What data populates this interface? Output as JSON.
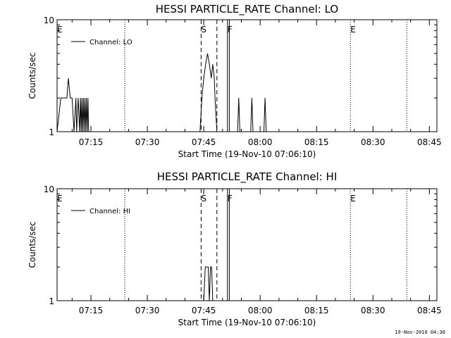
{
  "footer_timestamp": "19-Nov-2010 04:30",
  "chart_data": [
    {
      "type": "line",
      "title": "HESSI PARTICLE_RATE Channel: LO",
      "xlabel": "Start Time (19-Nov-10 07:06:10)",
      "ylabel": "Counts/sec",
      "y_scale": "log",
      "ylim": [
        1,
        10
      ],
      "y_ticks": [
        1,
        10
      ],
      "y_tick_labels": [
        "1",
        "10"
      ],
      "xlim": [
        "07:06",
        "08:47"
      ],
      "x_ticks": [
        "07:15",
        "07:30",
        "07:45",
        "08:00",
        "08:15",
        "08:30",
        "08:45"
      ],
      "legend": {
        "label": "Channel: LO",
        "placement": "top-left"
      },
      "markers": [
        {
          "label": "E",
          "time": "07:06",
          "style": "none"
        },
        {
          "label": "",
          "time": "07:24",
          "style": "dotted"
        },
        {
          "label": "S",
          "time": "07:44.3",
          "style": "dashed"
        },
        {
          "label": "",
          "time": "07:48.5",
          "style": "dashed"
        },
        {
          "label": "F",
          "time": "07:51.3",
          "style": "solid"
        },
        {
          "label": "",
          "time": "07:51.8",
          "style": "solid"
        },
        {
          "label": "E",
          "time": "08:24",
          "style": "dotted"
        },
        {
          "label": "",
          "time": "08:39",
          "style": "dotted"
        }
      ],
      "series": [
        {
          "x": [
            "07:06",
            "07:07",
            "07:08",
            "07:08.6",
            "07:09",
            "07:09.5",
            "07:10",
            "07:10.5",
            "07:11",
            "07:11.2",
            "07:11.6",
            "07:12",
            "07:12.2",
            "07:12.4",
            "07:12.6",
            "07:12.8",
            "07:13",
            "07:13.2",
            "07:13.4",
            "07:13.6",
            "07:13.8",
            "07:14",
            "07:14.2",
            "07:14.4",
            "07:44",
            "07:44.5",
            "07:45",
            "07:45.5",
            "07:46",
            "07:46.5",
            "07:47",
            "07:47.4",
            "07:47.8",
            "07:48",
            "07:48.5",
            "07:54",
            "07:54.3",
            "07:54.6",
            "07:57.5",
            "07:57.8",
            "07:58.1",
            "08:01",
            "08:01.3",
            "08:01.6"
          ],
          "y": [
            1,
            2,
            2,
            2,
            3,
            2,
            2,
            1,
            2,
            1,
            2,
            1,
            2,
            1,
            2,
            1,
            2,
            1,
            2,
            1,
            2,
            1,
            2,
            1,
            1,
            2,
            3,
            4,
            5,
            4,
            3,
            4,
            3,
            2,
            1,
            1,
            2,
            1,
            1,
            2,
            1,
            1,
            2,
            1
          ]
        }
      ]
    },
    {
      "type": "line",
      "title": "HESSI PARTICLE_RATE Channel: HI",
      "xlabel": "Start Time (19-Nov-10 07:06:10)",
      "ylabel": "Counts/sec",
      "y_scale": "log",
      "ylim": [
        1,
        10
      ],
      "y_ticks": [
        1,
        10
      ],
      "y_tick_labels": [
        "1",
        "10"
      ],
      "xlim": [
        "07:06",
        "08:47"
      ],
      "x_ticks": [
        "07:15",
        "07:30",
        "07:45",
        "08:00",
        "08:15",
        "08:30",
        "08:45"
      ],
      "legend": {
        "label": "Channel: HI",
        "placement": "top-left"
      },
      "markers": [
        {
          "label": "E",
          "time": "07:06",
          "style": "none"
        },
        {
          "label": "",
          "time": "07:24",
          "style": "dotted"
        },
        {
          "label": "S",
          "time": "07:44.3",
          "style": "dashed"
        },
        {
          "label": "",
          "time": "07:48.5",
          "style": "dashed"
        },
        {
          "label": "F",
          "time": "07:51.3",
          "style": "solid"
        },
        {
          "label": "",
          "time": "07:51.8",
          "style": "solid"
        },
        {
          "label": "E",
          "time": "08:24",
          "style": "dotted"
        },
        {
          "label": "",
          "time": "08:39",
          "style": "dotted"
        }
      ],
      "series": [
        {
          "x": [
            "07:45",
            "07:45.4",
            "07:45.8",
            "07:46.2",
            "07:46.5",
            "07:46.8",
            "07:47.1",
            "07:47.4"
          ],
          "y": [
            1,
            2,
            2,
            2,
            1,
            2,
            2,
            1
          ]
        }
      ]
    }
  ]
}
